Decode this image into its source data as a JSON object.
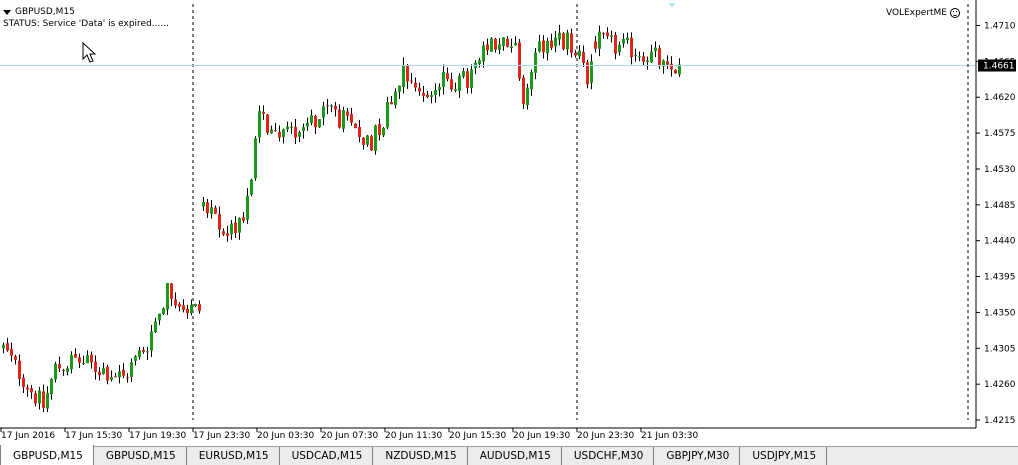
{
  "header": {
    "symbol": "GBPUSD,M15",
    "status": "STATUS:  Service 'Data' is expired......",
    "expert": "VOLExpertME"
  },
  "tabs": [
    "GBPUSD,M15",
    "GBPUSD,M15",
    "EURUSD,M15",
    "USDCAD,M15",
    "NZDUSD,M15",
    "AUDUSD,M15",
    "USDCHF,M30",
    "GBPJPY,M30",
    "USDJPY,M15"
  ],
  "active_tab": 0,
  "colors": {
    "bull": "#1a9a1a",
    "bear": "#e0261b",
    "wick": "#000000",
    "bid_line": "#a9d8f0",
    "background": "#ffffff"
  },
  "chart_data": {
    "type": "candlestick",
    "symbol": "GBPUSD",
    "timeframe": "M15",
    "ylim": [
      1.4205,
      1.4742
    ],
    "y_ticks": [
      "1.4710",
      "1.4665",
      "1.4620",
      "1.4575",
      "1.4530",
      "1.4485",
      "1.4440",
      "1.4395",
      "1.4350",
      "1.4305",
      "1.4260",
      "1.4215"
    ],
    "current_price": "1.4661",
    "x_labels": [
      "17 Jun 2016",
      "17 Jun 15:30",
      "17 Jun 19:30",
      "17 Jun 23:30",
      "20 Jun 03:30",
      "20 Jun 07:30",
      "20 Jun 11:30",
      "20 Jun 15:30",
      "20 Jun 19:30",
      "20 Jun 23:30",
      "21 Jun 03:30"
    ],
    "candles_per_label": 16,
    "session_breaks": [
      "17 Jun 23:30",
      "20 Jun 23:30"
    ],
    "grid": false,
    "segments": [
      {
        "n": 50,
        "start": 1.4305,
        "end": 1.4352,
        "lo": 1.4225,
        "hi": 1.4387,
        "pts": [
          [
            0,
            1.4305
          ],
          [
            7,
            1.4252
          ],
          [
            10,
            1.4232
          ],
          [
            13,
            1.428
          ],
          [
            18,
            1.429
          ],
          [
            24,
            1.428
          ],
          [
            30,
            1.4268
          ],
          [
            36,
            1.4312
          ],
          [
            41,
            1.438
          ],
          [
            46,
            1.4355
          ],
          [
            49,
            1.4352
          ]
        ]
      },
      {
        "n": 98,
        "start": 1.4483,
        "end": 1.4665,
        "lo": 1.443,
        "hi": 1.472,
        "pts": [
          [
            0,
            1.4483
          ],
          [
            5,
            1.445
          ],
          [
            8,
            1.4455
          ],
          [
            11,
            1.449
          ],
          [
            14,
            1.4595
          ],
          [
            18,
            1.4575
          ],
          [
            25,
            1.4585
          ],
          [
            28,
            1.4595
          ],
          [
            32,
            1.4605
          ],
          [
            38,
            1.4575
          ],
          [
            42,
            1.4565
          ],
          [
            46,
            1.4605
          ],
          [
            50,
            1.466
          ],
          [
            55,
            1.462
          ],
          [
            60,
            1.464
          ],
          [
            66,
            1.464
          ],
          [
            71,
            1.468
          ],
          [
            78,
            1.469
          ],
          [
            80,
            1.46
          ],
          [
            83,
            1.4685
          ],
          [
            87,
            1.469
          ],
          [
            91,
            1.469
          ],
          [
            96,
            1.465
          ],
          [
            98,
            1.4665
          ]
        ]
      },
      {
        "n": 22,
        "start": 1.469,
        "end": 1.4661,
        "lo": 1.464,
        "hi": 1.471,
        "pts": [
          [
            0,
            1.469
          ],
          [
            5,
            1.4683
          ],
          [
            10,
            1.468
          ],
          [
            15,
            1.467
          ],
          [
            18,
            1.465
          ],
          [
            21,
            1.4661
          ]
        ]
      }
    ]
  }
}
